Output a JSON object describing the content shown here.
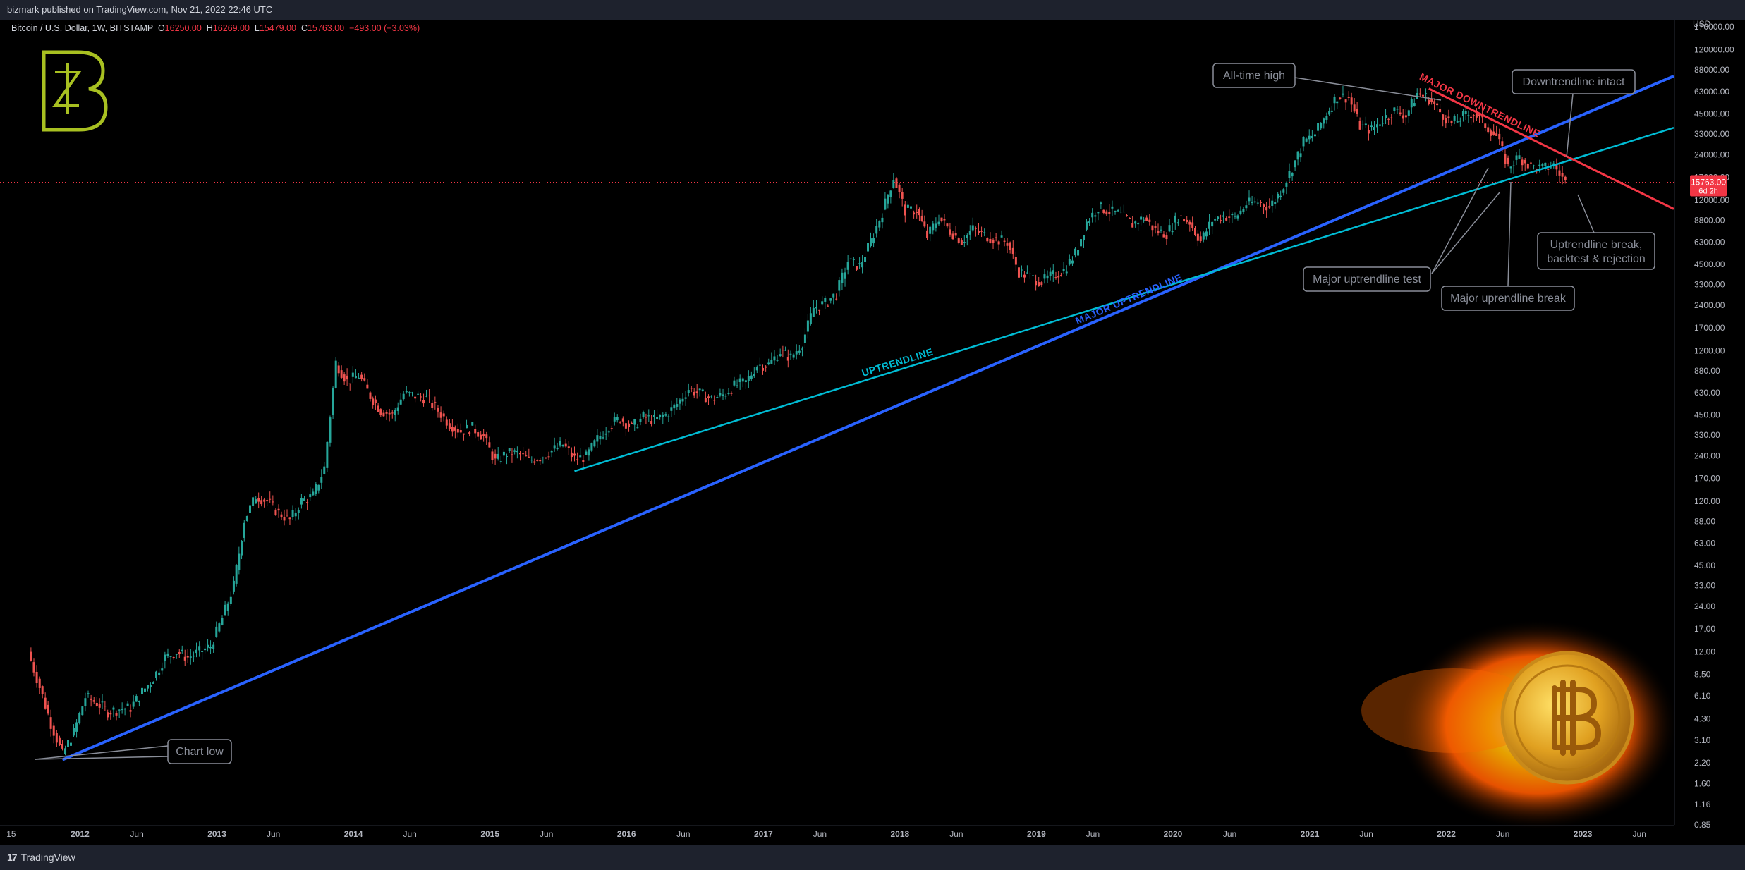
{
  "header": {
    "publisher": "bizmark published on TradingView.com, Nov 21, 2022 22:46 UTC"
  },
  "legend": {
    "symbol": "Bitcoin / U.S. Dollar, 1W, BITSTAMP",
    "o_label": "O",
    "o_value": "16250.00",
    "h_label": "H",
    "h_value": "16269.00",
    "l_label": "L",
    "l_value": "15479.00",
    "c_label": "C",
    "c_value": "15763.00",
    "change": "−493.00 (−3.03%)"
  },
  "footer": {
    "brand": "TradingView",
    "logo_glyph": "17"
  },
  "price_tag": {
    "value": "15763.00",
    "countdown": "6d 2h"
  },
  "chart_data": {
    "type": "candlestick",
    "y_scale": "log",
    "ylabel": "USD",
    "ylim": [
      0.85,
      170000
    ],
    "xlim": [
      "2011-06",
      "2023-09"
    ],
    "y_ticks": [
      "170000.00",
      "120000.00",
      "88000.00",
      "63000.00",
      "45000.00",
      "33000.00",
      "24000.00",
      "17000.00",
      "12000.00",
      "8800.00",
      "6300.00",
      "4500.00",
      "3300.00",
      "2400.00",
      "1700.00",
      "1200.00",
      "880.00",
      "630.00",
      "450.00",
      "330.00",
      "240.00",
      "170.00",
      "120.00",
      "88.00",
      "63.00",
      "45.00",
      "33.00",
      "24.00",
      "17.00",
      "12.00",
      "8.50",
      "6.10",
      "4.30",
      "3.10",
      "2.20",
      "1.60",
      "1.16",
      "0.85"
    ],
    "x_ticks": [
      {
        "label": "15",
        "date": "2011-07"
      },
      {
        "label": "2012",
        "date": "2012-01"
      },
      {
        "label": "Jun",
        "date": "2012-06"
      },
      {
        "label": "2013",
        "date": "2013-01"
      },
      {
        "label": "Jun",
        "date": "2013-06"
      },
      {
        "label": "2014",
        "date": "2014-01"
      },
      {
        "label": "Jun",
        "date": "2014-06"
      },
      {
        "label": "2015",
        "date": "2015-01"
      },
      {
        "label": "Jun",
        "date": "2015-06"
      },
      {
        "label": "2016",
        "date": "2016-01"
      },
      {
        "label": "Jun",
        "date": "2016-06"
      },
      {
        "label": "2017",
        "date": "2017-01"
      },
      {
        "label": "Jun",
        "date": "2017-06"
      },
      {
        "label": "2018",
        "date": "2018-01"
      },
      {
        "label": "Jun",
        "date": "2018-06"
      },
      {
        "label": "2019",
        "date": "2019-01"
      },
      {
        "label": "Jun",
        "date": "2019-06"
      },
      {
        "label": "2020",
        "date": "2020-01"
      },
      {
        "label": "Jun",
        "date": "2020-06"
      },
      {
        "label": "2021",
        "date": "2021-01"
      },
      {
        "label": "Jun",
        "date": "2021-06"
      },
      {
        "label": "2022",
        "date": "2022-01"
      },
      {
        "label": "Jun",
        "date": "2022-06"
      },
      {
        "label": "2023",
        "date": "2023-01"
      },
      {
        "label": "Jun",
        "date": "2023-06"
      }
    ],
    "price_path": [
      [
        "2011-08",
        12
      ],
      [
        "2011-09",
        7
      ],
      [
        "2011-10",
        4
      ],
      [
        "2011-11",
        2.5
      ],
      [
        "2011-12",
        3.5
      ],
      [
        "2012-01",
        6
      ],
      [
        "2012-02",
        5.5
      ],
      [
        "2012-03",
        4.8
      ],
      [
        "2012-04",
        5
      ],
      [
        "2012-05",
        5.1
      ],
      [
        "2012-06",
        6.5
      ],
      [
        "2012-07",
        8
      ],
      [
        "2012-08",
        11
      ],
      [
        "2012-09",
        12
      ],
      [
        "2012-10",
        11
      ],
      [
        "2012-11",
        12
      ],
      [
        "2012-12",
        13
      ],
      [
        "2013-01",
        20
      ],
      [
        "2013-02",
        33
      ],
      [
        "2013-03",
        90
      ],
      [
        "2013-04",
        130
      ],
      [
        "2013-05",
        120
      ],
      [
        "2013-06",
        100
      ],
      [
        "2013-07",
        90
      ],
      [
        "2013-08",
        120
      ],
      [
        "2013-09",
        130
      ],
      [
        "2013-10",
        200
      ],
      [
        "2013-11",
        1000
      ],
      [
        "2013-12",
        750
      ],
      [
        "2014-01",
        820
      ],
      [
        "2014-02",
        600
      ],
      [
        "2014-03",
        480
      ],
      [
        "2014-04",
        450
      ],
      [
        "2014-05",
        620
      ],
      [
        "2014-06",
        600
      ],
      [
        "2014-07",
        580
      ],
      [
        "2014-08",
        480
      ],
      [
        "2014-09",
        390
      ],
      [
        "2014-10",
        350
      ],
      [
        "2014-11",
        370
      ],
      [
        "2014-12",
        320
      ],
      [
        "2015-01",
        220
      ],
      [
        "2015-02",
        250
      ],
      [
        "2015-03",
        250
      ],
      [
        "2015-04",
        225
      ],
      [
        "2015-05",
        235
      ],
      [
        "2015-06",
        260
      ],
      [
        "2015-07",
        285
      ],
      [
        "2015-08",
        230
      ],
      [
        "2015-09",
        235
      ],
      [
        "2015-10",
        310
      ],
      [
        "2015-11",
        380
      ],
      [
        "2015-12",
        430
      ],
      [
        "2016-01",
        370
      ],
      [
        "2016-02",
        435
      ],
      [
        "2016-03",
        415
      ],
      [
        "2016-04",
        450
      ],
      [
        "2016-05",
        530
      ],
      [
        "2016-06",
        670
      ],
      [
        "2016-07",
        620
      ],
      [
        "2016-08",
        575
      ],
      [
        "2016-09",
        610
      ],
      [
        "2016-10",
        700
      ],
      [
        "2016-11",
        740
      ],
      [
        "2016-12",
        960
      ],
      [
        "2017-01",
        970
      ],
      [
        "2017-02",
        1190
      ],
      [
        "2017-03",
        1080
      ],
      [
        "2017-04",
        1350
      ],
      [
        "2017-05",
        2300
      ],
      [
        "2017-06",
        2480
      ],
      [
        "2017-07",
        2870
      ],
      [
        "2017-08",
        4700
      ],
      [
        "2017-09",
        4350
      ],
      [
        "2017-10",
        6400
      ],
      [
        "2017-11",
        10000
      ],
      [
        "2017-12",
        17000
      ],
      [
        "2018-01",
        10200
      ],
      [
        "2018-02",
        10300
      ],
      [
        "2018-03",
        6900
      ],
      [
        "2018-04",
        9200
      ],
      [
        "2018-05",
        7500
      ],
      [
        "2018-06",
        6400
      ],
      [
        "2018-07",
        7700
      ],
      [
        "2018-08",
        7000
      ],
      [
        "2018-09",
        6600
      ],
      [
        "2018-10",
        6300
      ],
      [
        "2018-11",
        4000
      ],
      [
        "2018-12",
        3700
      ],
      [
        "2019-01",
        3450
      ],
      [
        "2019-02",
        3800
      ],
      [
        "2019-03",
        4100
      ],
      [
        "2019-04",
        5300
      ],
      [
        "2019-05",
        8600
      ],
      [
        "2019-06",
        10800
      ],
      [
        "2019-07",
        10100
      ],
      [
        "2019-08",
        9600
      ],
      [
        "2019-09",
        8300
      ],
      [
        "2019-10",
        9200
      ],
      [
        "2019-11",
        7550
      ],
      [
        "2019-12",
        7200
      ],
      [
        "2020-01",
        9350
      ],
      [
        "2020-02",
        8600
      ],
      [
        "2020-03",
        6400
      ],
      [
        "2020-04",
        8800
      ],
      [
        "2020-05",
        9450
      ],
      [
        "2020-06",
        9150
      ],
      [
        "2020-07",
        11300
      ],
      [
        "2020-08",
        11650
      ],
      [
        "2020-09",
        10800
      ],
      [
        "2020-10",
        13800
      ],
      [
        "2020-11",
        19700
      ],
      [
        "2020-12",
        29000
      ],
      [
        "2021-01",
        33100
      ],
      [
        "2021-02",
        45200
      ],
      [
        "2021-03",
        58800
      ],
      [
        "2021-04",
        57700
      ],
      [
        "2021-05",
        37300
      ],
      [
        "2021-06",
        35000
      ],
      [
        "2021-07",
        41500
      ],
      [
        "2021-08",
        47100
      ],
      [
        "2021-09",
        43800
      ],
      [
        "2021-10",
        61300
      ],
      [
        "2021-11",
        57000
      ],
      [
        "2021-12",
        46200
      ],
      [
        "2022-01",
        38500
      ],
      [
        "2022-02",
        43200
      ],
      [
        "2022-03",
        45500
      ],
      [
        "2022-04",
        37700
      ],
      [
        "2022-05",
        31800
      ],
      [
        "2022-06",
        19900
      ],
      [
        "2022-07",
        23300
      ],
      [
        "2022-08",
        20000
      ],
      [
        "2022-09",
        19400
      ],
      [
        "2022-10",
        20500
      ],
      [
        "2022-11",
        15763
      ]
    ],
    "last_price": 15763.0,
    "lines": [
      {
        "name": "MAJOR UPTRENDLINE",
        "from": [
          "2011-11",
          2.3
        ],
        "to": [
          "2020-04",
          4000
        ],
        "color": "#2962ff"
      },
      {
        "name": "UPTRENDLINE",
        "from": [
          "2015-08",
          190
        ],
        "to": [
          "2020-04",
          4000
        ],
        "color": "#00bcd4"
      },
      {
        "name": "MAJOR DOWNTRENDLINE",
        "from": [
          "2021-11",
          66000
        ],
        "to": [
          "2023-07",
          12000
        ],
        "color": "#f23645"
      }
    ],
    "annotations": [
      {
        "text": "All-time high"
      },
      {
        "text": "Downtrendline intact"
      },
      {
        "text": "Major uptrendline test"
      },
      {
        "text": "Major uprendline break"
      },
      {
        "text": "Uptrendline break,"
      },
      {
        "text": "backtest & rejection"
      },
      {
        "text": "Chart low"
      }
    ],
    "grid": false
  },
  "colors": {
    "up": "#26a69a",
    "down": "#ef5350",
    "logo": "#a8c021"
  }
}
